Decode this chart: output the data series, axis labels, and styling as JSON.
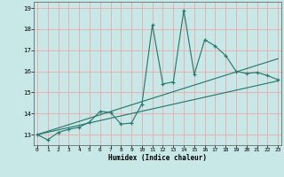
{
  "xlabel": "Humidex (Indice chaleur)",
  "bg_color": "#c8e8e8",
  "grid_color": "#f0a8a8",
  "line_color": "#2a7a70",
  "xlim": [
    -0.3,
    23.3
  ],
  "ylim": [
    12.5,
    19.3
  ],
  "yticks": [
    13,
    14,
    15,
    16,
    17,
    18,
    19
  ],
  "xticks": [
    0,
    1,
    2,
    3,
    4,
    5,
    6,
    7,
    8,
    9,
    10,
    11,
    12,
    13,
    14,
    15,
    16,
    17,
    18,
    19,
    20,
    21,
    22,
    23
  ],
  "main_x": [
    0,
    1,
    2,
    3,
    4,
    5,
    6,
    7,
    8,
    9,
    10,
    11,
    12,
    13,
    14,
    15,
    16,
    17,
    18,
    19,
    20,
    21,
    22,
    23
  ],
  "main_y": [
    13.0,
    12.75,
    13.1,
    13.25,
    13.35,
    13.6,
    14.1,
    14.05,
    13.5,
    13.55,
    14.45,
    18.2,
    15.4,
    15.5,
    18.9,
    15.85,
    17.5,
    17.2,
    16.75,
    16.0,
    15.9,
    15.95,
    15.8,
    15.6
  ],
  "trend1_x": [
    0,
    23
  ],
  "trend1_y": [
    13.0,
    15.55
  ],
  "trend2_x": [
    0,
    23
  ],
  "trend2_y": [
    13.0,
    16.6
  ]
}
